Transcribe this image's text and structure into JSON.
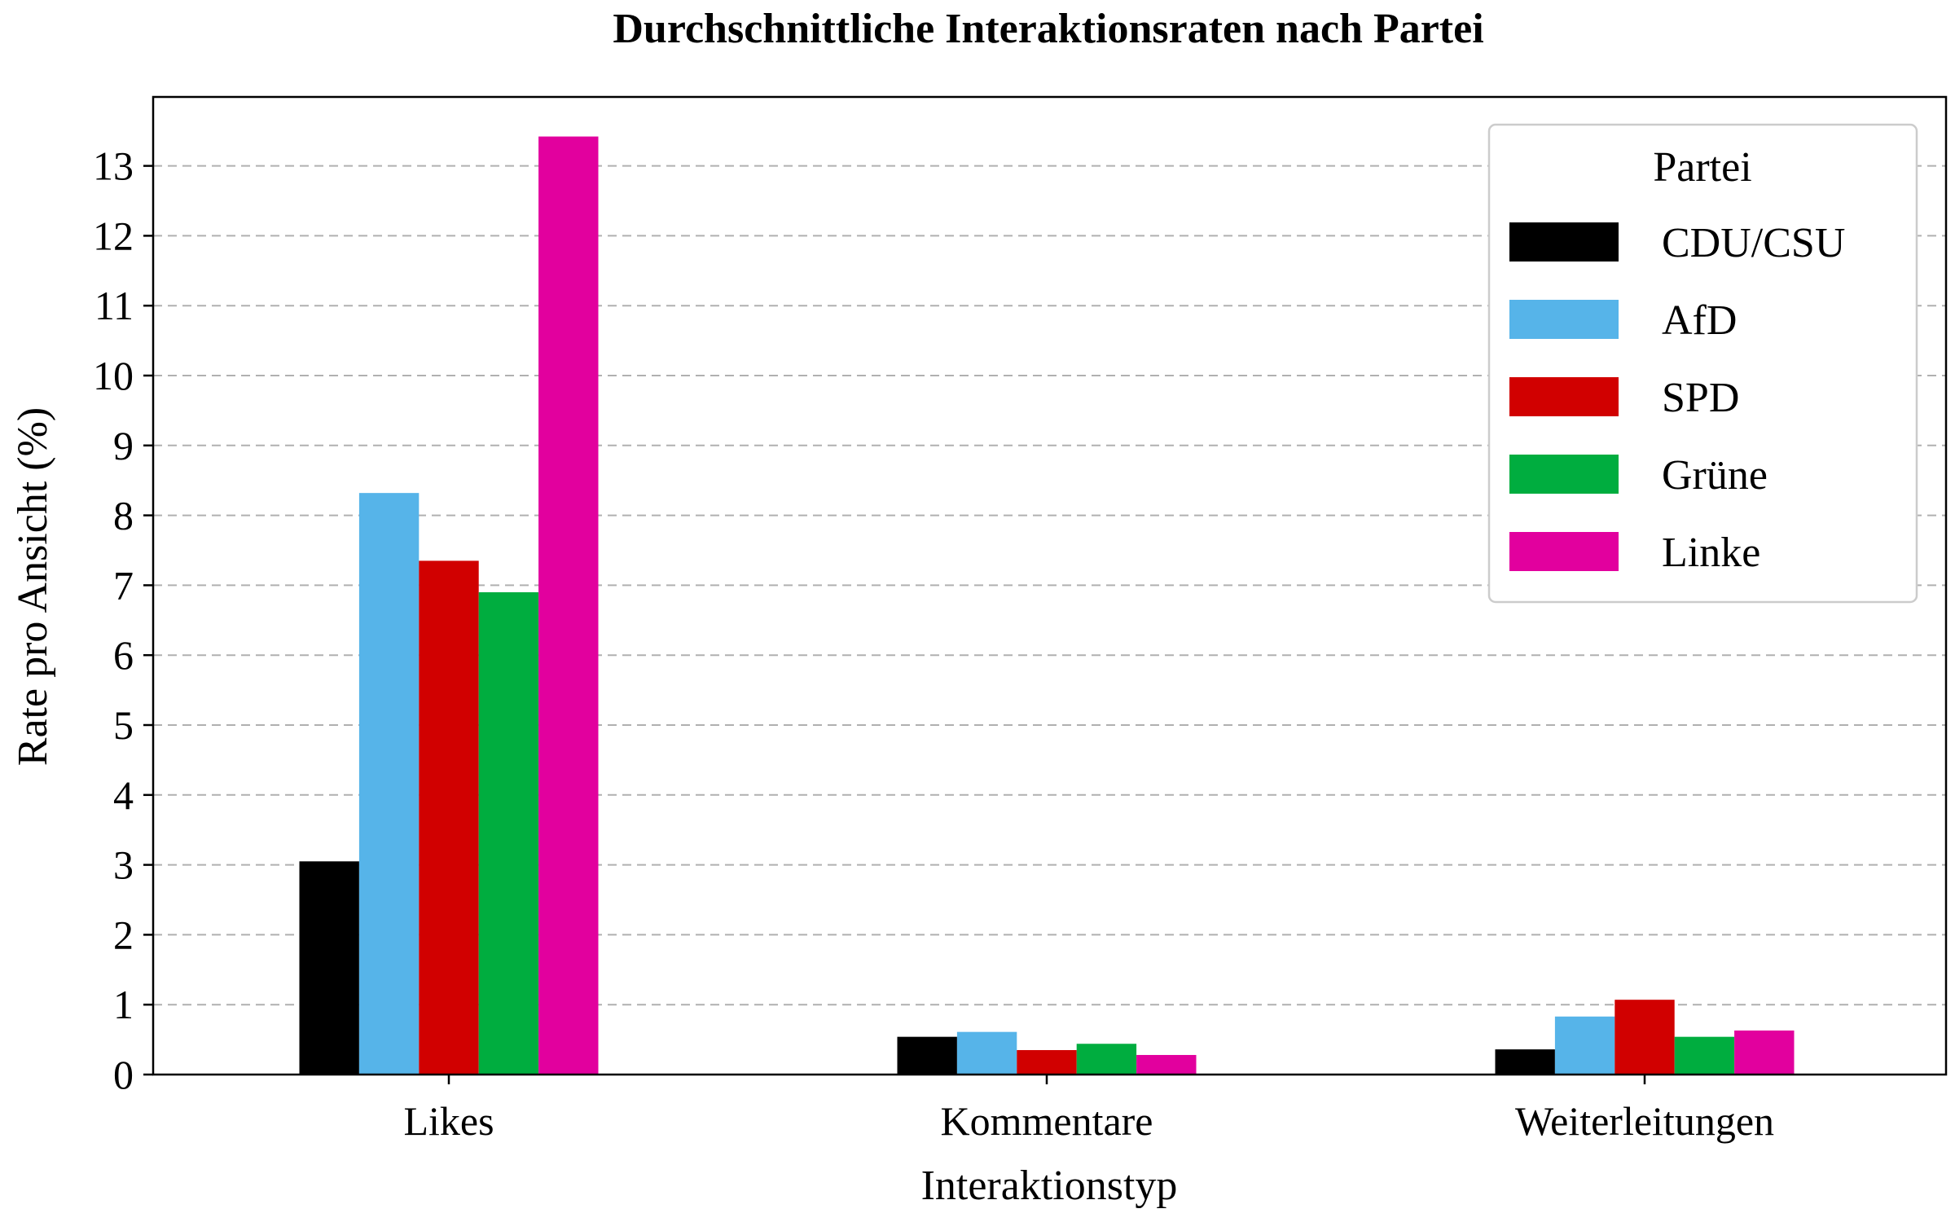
{
  "chart_data": {
    "type": "bar",
    "title": "Durchschnittliche Interaktionsraten nach Partei",
    "xlabel": "Interaktionstyp",
    "ylabel": "Rate pro Ansicht (%)",
    "categories": [
      "Likes",
      "Kommentare",
      "Weiterleitungen"
    ],
    "ylim": [
      0,
      14
    ],
    "yticks": [
      0,
      1,
      2,
      3,
      4,
      5,
      6,
      7,
      8,
      9,
      10,
      11,
      12,
      13
    ],
    "grid": "y-dashed",
    "legend": {
      "title": "Partei",
      "position": "top-right"
    },
    "series": [
      {
        "name": "CDU/CSU",
        "color": "#000000",
        "values": [
          3.05,
          0.54,
          0.36
        ]
      },
      {
        "name": "AfD",
        "color": "#56b4e9",
        "values": [
          8.32,
          0.61,
          0.83
        ]
      },
      {
        "name": "SPD",
        "color": "#d10000",
        "values": [
          7.35,
          0.35,
          1.07
        ]
      },
      {
        "name": "Grüne",
        "color": "#00ad3f",
        "values": [
          6.9,
          0.44,
          0.54
        ]
      },
      {
        "name": "Linke",
        "color": "#e2009e",
        "values": [
          13.42,
          0.28,
          0.63
        ]
      }
    ]
  }
}
